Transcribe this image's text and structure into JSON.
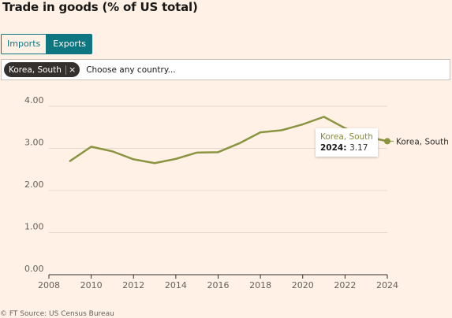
{
  "title": "Trade in goods (% of US total)",
  "toggle": {
    "imports_label": "Imports",
    "exports_label": "Exports",
    "selected": "Exports"
  },
  "country_selector": {
    "chip_label": "Korea, South",
    "chip_remove": "×",
    "placeholder": "Choose any country..."
  },
  "tooltip": {
    "series": "Korea, South",
    "year": "2024",
    "value": "3.17"
  },
  "source": "© FT Source: US Census Bureau",
  "colors": {
    "line": "#8a9441",
    "accent": "#0d7680",
    "background": "#fff1e5",
    "grid": "#e6d9ce"
  },
  "chart_data": {
    "type": "line",
    "title": "Trade in goods (% of US total)",
    "xlabel": "",
    "ylabel": "",
    "xlim": [
      2008,
      2024
    ],
    "ylim": [
      0,
      4
    ],
    "x_ticks": [
      2008,
      2010,
      2012,
      2014,
      2016,
      2018,
      2020,
      2022,
      2024
    ],
    "y_ticks": [
      0,
      1,
      2,
      3,
      4
    ],
    "y_tick_labels": [
      "0.00",
      "1.00",
      "2.00",
      "3.00",
      "4.00"
    ],
    "grid": "horizontal",
    "series": [
      {
        "name": "Korea, South",
        "x": [
          2009,
          2010,
          2011,
          2012,
          2013,
          2014,
          2015,
          2016,
          2017,
          2018,
          2019,
          2020,
          2021,
          2022,
          2023,
          2024
        ],
        "values": [
          2.7,
          3.04,
          2.93,
          2.74,
          2.65,
          2.75,
          2.9,
          2.91,
          3.12,
          3.38,
          3.43,
          3.57,
          3.75,
          3.48,
          3.28,
          3.17
        ]
      }
    ]
  }
}
